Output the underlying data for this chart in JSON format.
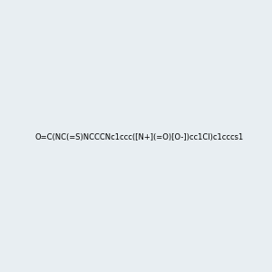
{
  "smiles": "O=C(NC(=S)NCCCNc1ccc([N+](=O)[O-])cc1Cl)c1cccs1",
  "image_size": 300,
  "background_color": "#e8eef2"
}
